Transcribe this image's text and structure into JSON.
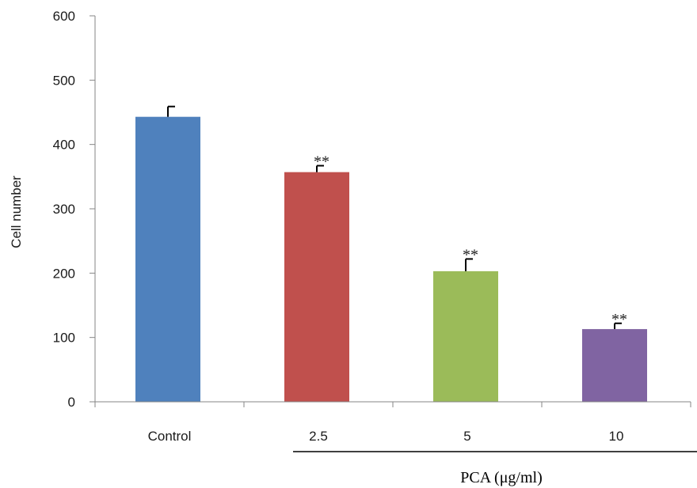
{
  "chart_data": {
    "type": "bar",
    "title": "",
    "xlabel": "",
    "ylabel": "Cell number",
    "group_label": "PCA (μg/ml)",
    "ylim": [
      0,
      600
    ],
    "yticks": [
      "0",
      "100",
      "200",
      "300",
      "400",
      "500",
      "600"
    ],
    "grid": false,
    "legend": "none",
    "categories": [
      "Control",
      "2.5",
      "5",
      "10"
    ],
    "values": [
      443,
      357,
      203,
      113
    ],
    "errors": [
      16,
      10,
      19,
      9
    ],
    "significance": [
      "",
      "**",
      "**",
      "**"
    ],
    "colors": [
      "#4f81bd",
      "#c0504d",
      "#9bbb59",
      "#8064a2"
    ]
  }
}
